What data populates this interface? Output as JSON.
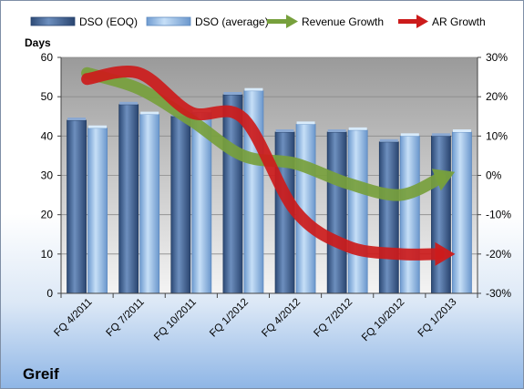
{
  "company_label": "Greif",
  "chart_data": {
    "type": "bar",
    "categories": [
      "FQ 4/2011",
      "FQ 7/2011",
      "FQ 10/2011",
      "FQ 1/2012",
      "FQ 4/2012",
      "FQ 7/2012",
      "FQ 10/2012",
      "FQ 1/2013"
    ],
    "ylabel": "Days",
    "ylim": [
      0,
      60
    ],
    "yticks": [
      "0",
      "10",
      "20",
      "30",
      "40",
      "50",
      "60"
    ],
    "y2lim": [
      -30,
      30
    ],
    "y2ticks": [
      "-30%",
      "-20%",
      "-10%",
      "0%",
      "10%",
      "20%",
      "30%"
    ],
    "grid": true,
    "legend_position": "top",
    "series": [
      {
        "name": "DSO (EOQ)",
        "type": "bar",
        "values": [
          44,
          48,
          45,
          50.5,
          41,
          41,
          38.5,
          40
        ],
        "color": "#4a6c9a"
      },
      {
        "name": "DSO (average)",
        "type": "bar",
        "values": [
          42,
          45.5,
          46,
          51.5,
          43,
          41.5,
          40,
          41
        ],
        "color": "#9ec4ec"
      },
      {
        "name": "Revenue Growth",
        "type": "line",
        "axis": "right",
        "values": [
          26,
          22,
          14,
          5,
          3,
          -2,
          -5,
          0.5
        ],
        "color": "#77a03c"
      },
      {
        "name": "AR Growth",
        "type": "line",
        "axis": "right",
        "values": [
          24.5,
          26,
          16,
          14.5,
          -9,
          -18,
          -20,
          -20
        ],
        "color": "#cc1b1b"
      }
    ]
  }
}
